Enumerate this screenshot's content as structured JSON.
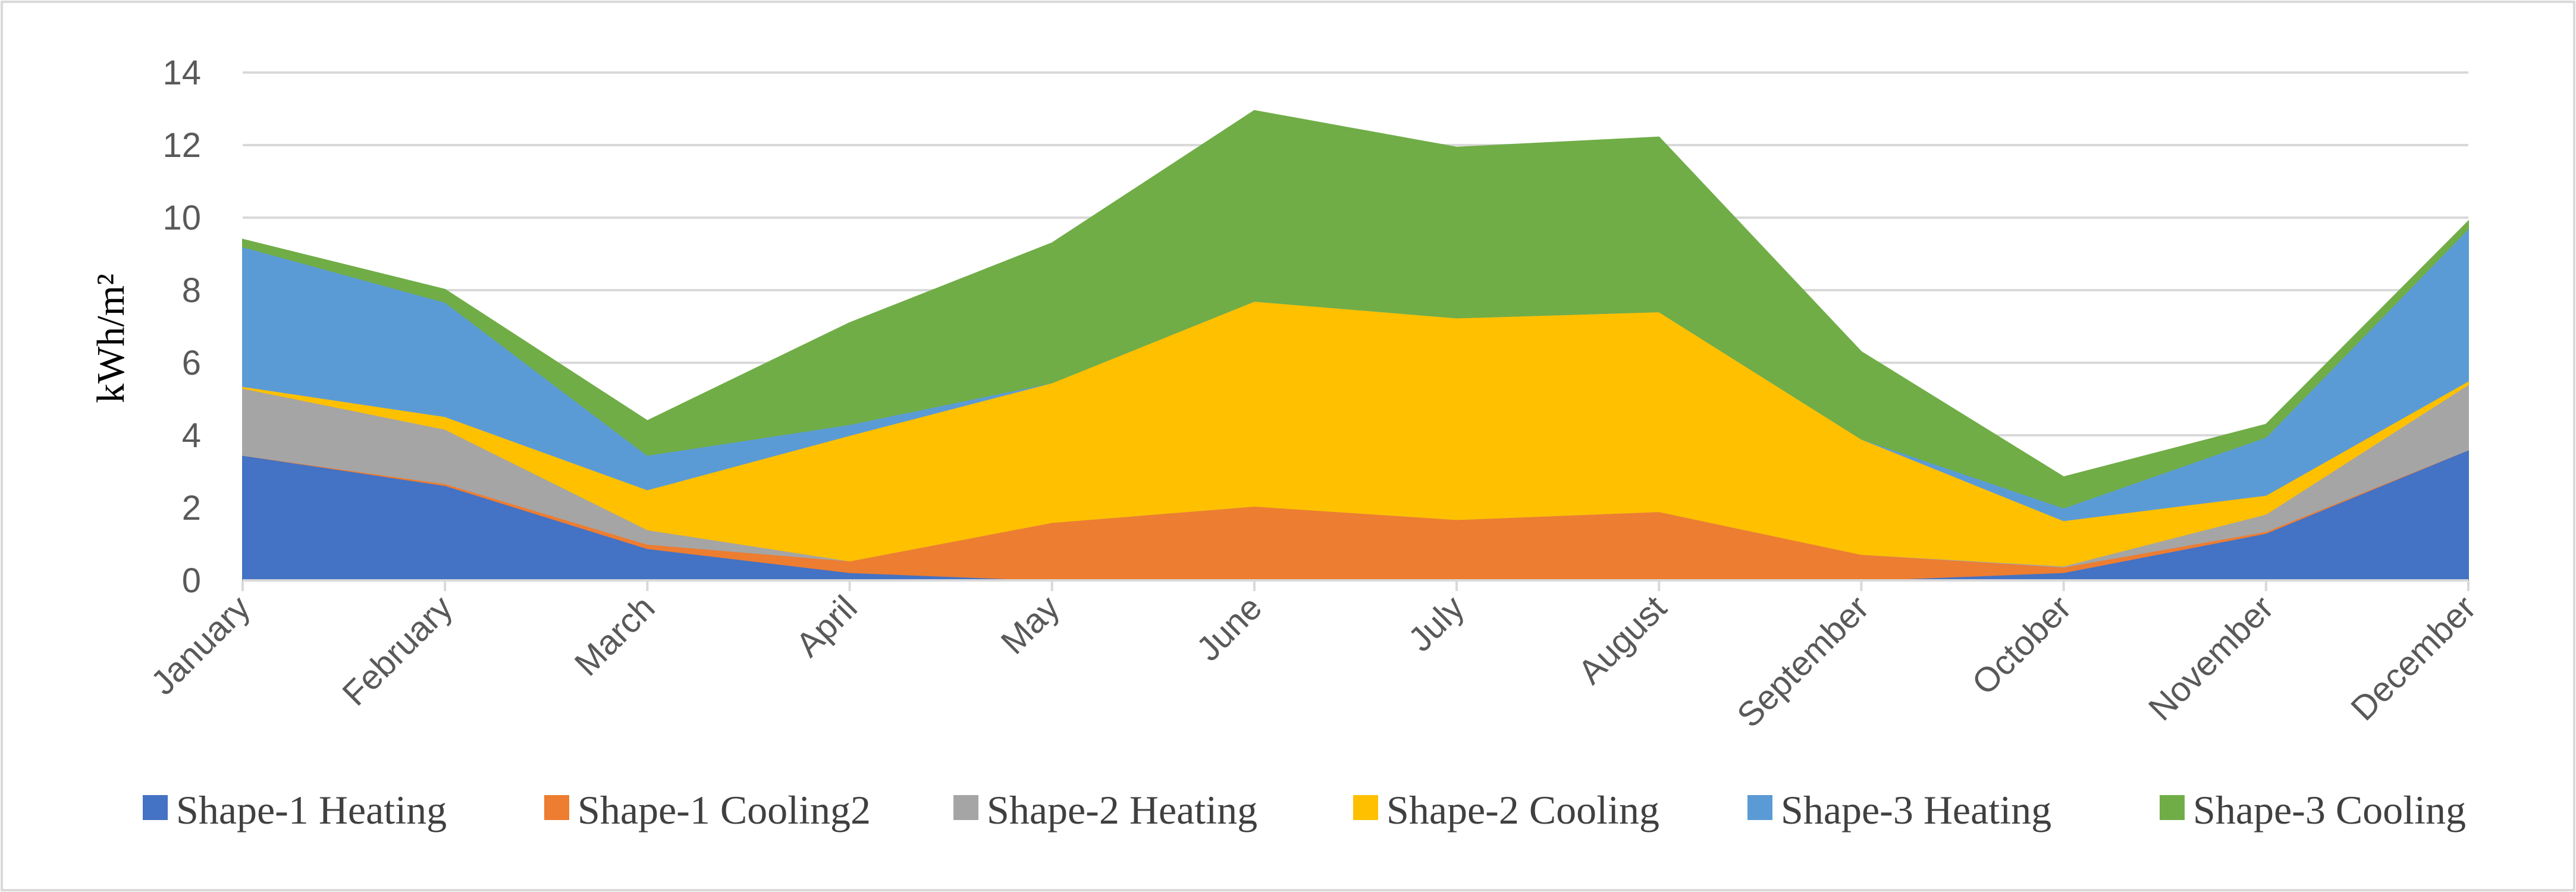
{
  "chart_data": {
    "type": "area",
    "stacked": true,
    "title": "",
    "xlabel": "",
    "ylabel": "kWh/m²",
    "ylim": [
      0,
      14
    ],
    "yticks": [
      0,
      2,
      4,
      6,
      8,
      10,
      12,
      14
    ],
    "grid": true,
    "legend_position": "bottom",
    "categories": [
      "January",
      "February",
      "March",
      "April",
      "May",
      "June",
      "July",
      "August",
      "September",
      "October",
      "November",
      "December"
    ],
    "series": [
      {
        "name": "Shape-1 Heating",
        "color": "#4472C4",
        "values": [
          3.45,
          2.62,
          0.88,
          0.22,
          0.0,
          0.0,
          0.0,
          0.0,
          0.0,
          0.22,
          1.3,
          3.6
        ]
      },
      {
        "name": "Shape-1 Cooling2",
        "color": "#ED7D31",
        "values": [
          0.0,
          0.05,
          0.12,
          0.32,
          1.6,
          2.05,
          1.68,
          1.9,
          0.72,
          0.15,
          0.05,
          0.0
        ]
      },
      {
        "name": "Shape-2 Heating",
        "color": "#A5A5A5",
        "values": [
          1.85,
          1.5,
          0.4,
          0.0,
          0.0,
          0.0,
          0.0,
          0.0,
          0.0,
          0.03,
          0.48,
          1.8
        ]
      },
      {
        "name": "Shape-2 Cooling",
        "color": "#FFC000",
        "values": [
          0.05,
          0.35,
          1.1,
          3.46,
          3.85,
          5.65,
          5.56,
          5.51,
          3.18,
          1.25,
          0.52,
          0.1
        ]
      },
      {
        "name": "Shape-3 Heating",
        "color": "#5B9BD5",
        "values": [
          3.85,
          3.15,
          0.95,
          0.3,
          0.0,
          0.0,
          0.0,
          0.0,
          0.0,
          0.35,
          1.6,
          4.2
        ]
      },
      {
        "name": "Shape-3 Cooling",
        "color": "#70AD47",
        "values": [
          0.2,
          0.35,
          0.95,
          2.8,
          3.85,
          5.25,
          4.7,
          4.81,
          2.4,
          0.85,
          0.35,
          0.2
        ]
      }
    ]
  }
}
